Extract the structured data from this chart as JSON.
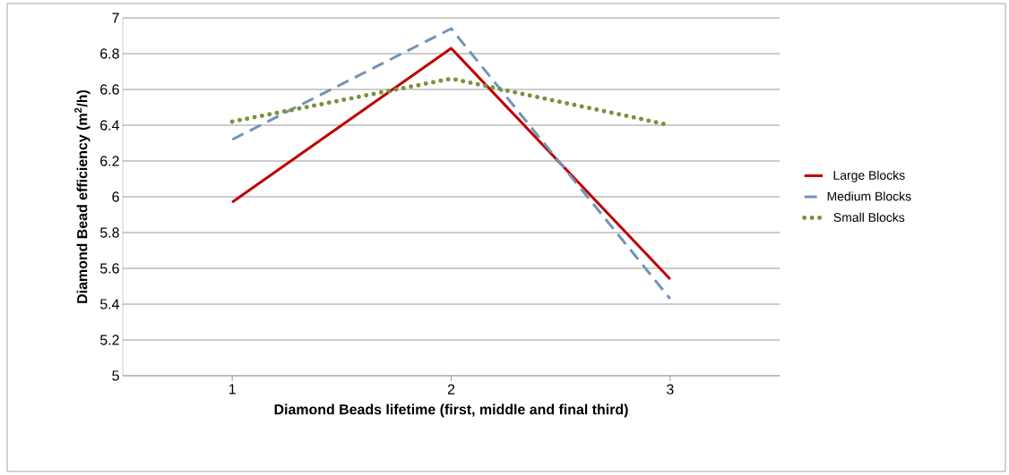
{
  "chart_data": {
    "type": "line",
    "xlabel": "Diamond Beads lifetime (first, middle and final third)",
    "ylabel": "Diamond Bead efficiency (m$^{2}$/h)",
    "categories": [
      "1",
      "2",
      "3"
    ],
    "series": [
      {
        "name": "Large Blocks",
        "color": "#c00000",
        "line_style": "solid",
        "values": [
          5.97,
          6.83,
          5.54
        ]
      },
      {
        "name": "Medium Blocks",
        "color": "#7094b8",
        "line_style": "dashed",
        "values": [
          6.32,
          6.94,
          5.43
        ]
      },
      {
        "name": "Small Blocks",
        "color": "#77933c",
        "line_style": "dotted",
        "values": [
          6.42,
          6.66,
          6.4
        ]
      }
    ],
    "ylim": [
      5,
      7
    ],
    "yticks": [
      5,
      5.2,
      5.4,
      5.6,
      5.8,
      6,
      6.2,
      6.4,
      6.6,
      6.8,
      7
    ],
    "grid": "y",
    "legend": "right",
    "marker": "none"
  }
}
